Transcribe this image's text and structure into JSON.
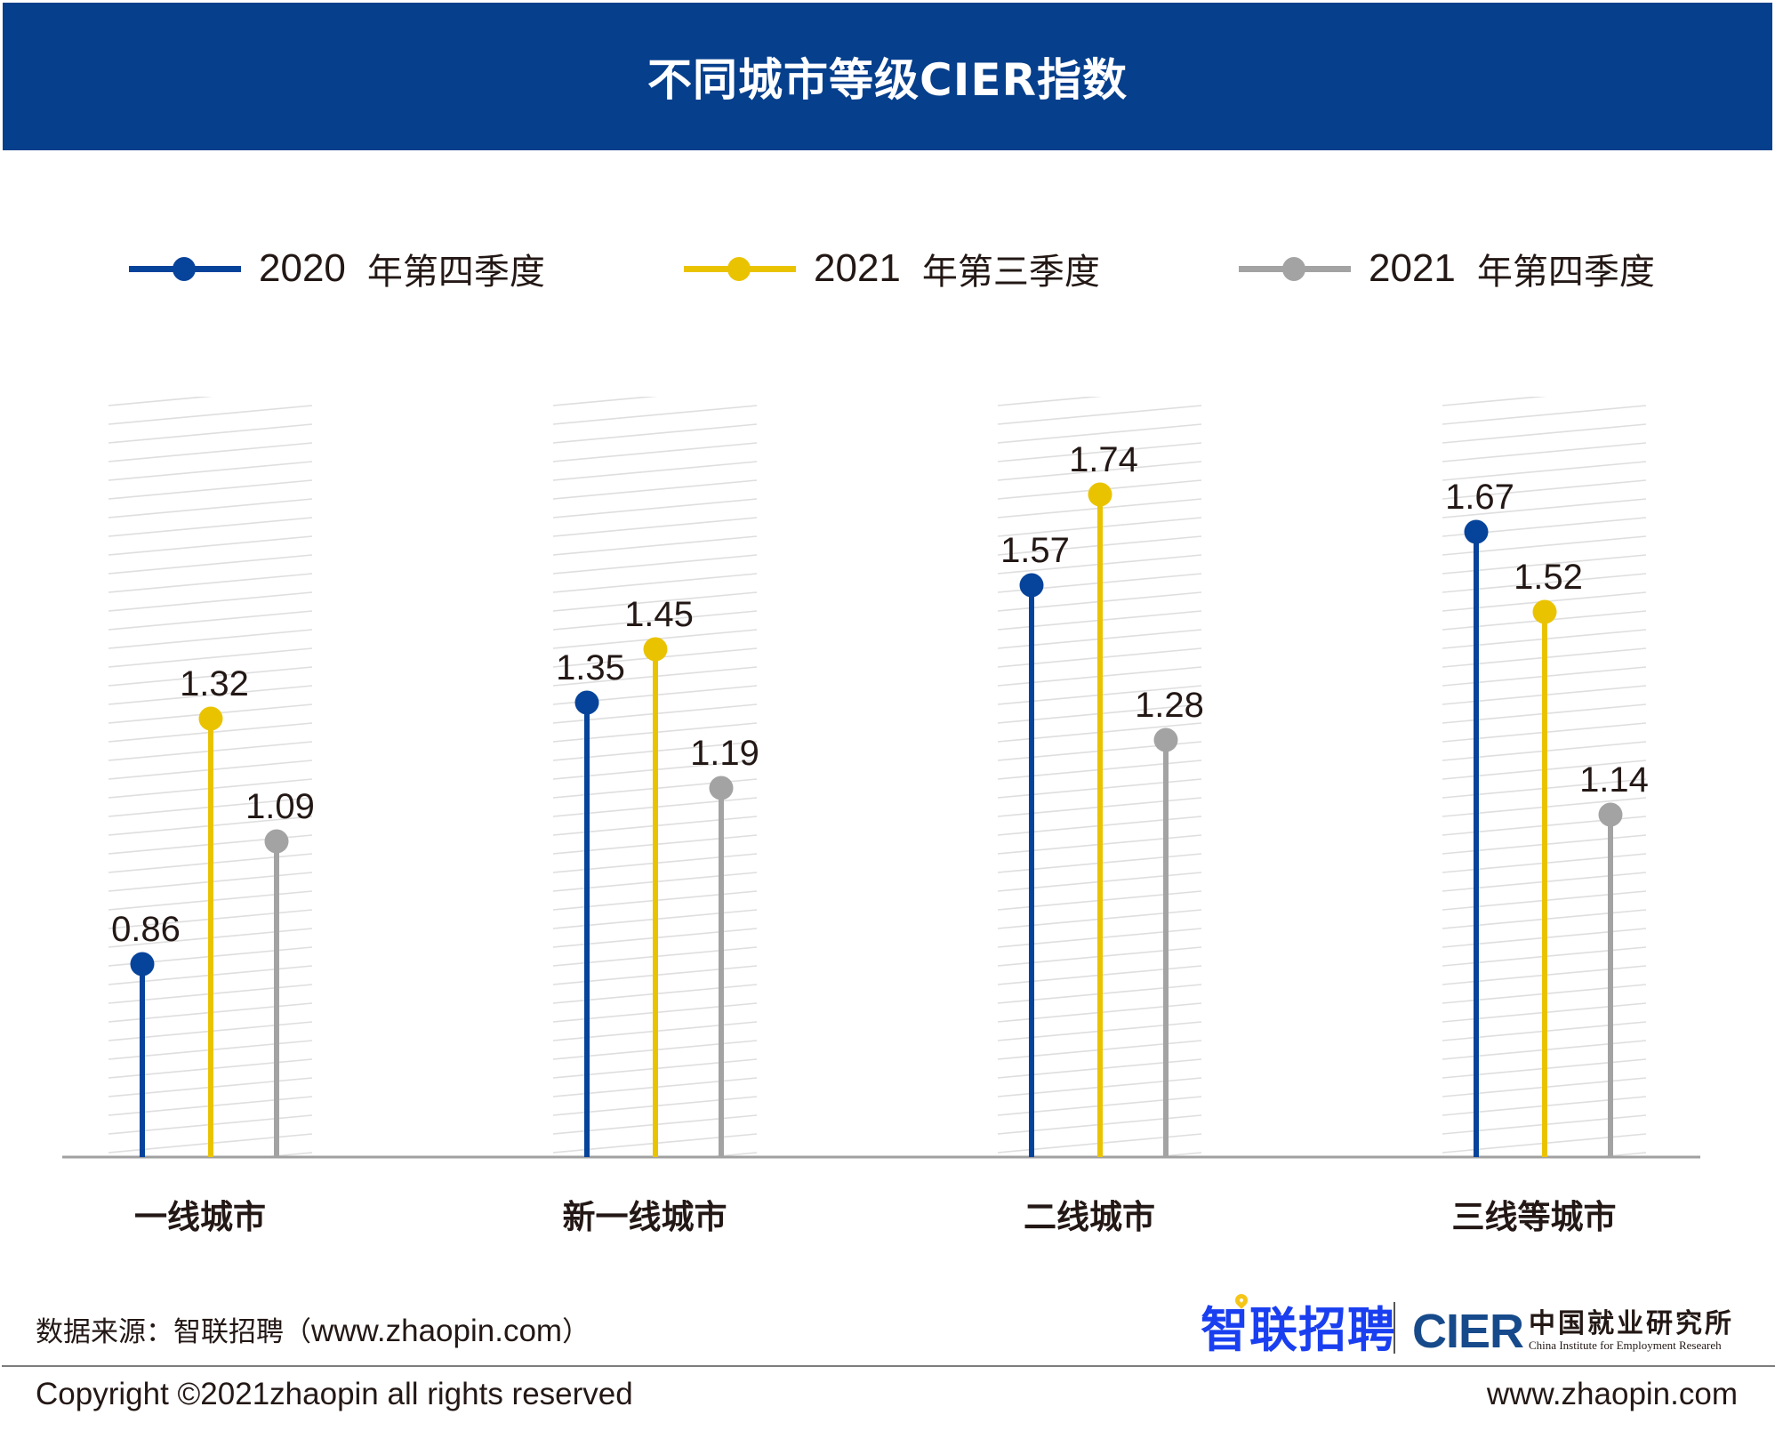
{
  "header": {
    "title": "不同城市等级CIER指数"
  },
  "legend": [
    {
      "year": "2020",
      "quarter": "年第四季度",
      "color": "#06439a"
    },
    {
      "year": "2021",
      "quarter": "年第三季度",
      "color": "#eac300"
    },
    {
      "year": "2021",
      "quarter": "年第四季度",
      "color": "#a3a3a3"
    }
  ],
  "chart_data": {
    "type": "lollipop",
    "title": "不同城市等级CIER指数",
    "xlabel": "",
    "ylabel": "",
    "categories": [
      "一线城市",
      "新一线城市",
      "二线城市",
      "三线等城市"
    ],
    "series": [
      {
        "name": "2020 年第四季度",
        "color": "#06439a",
        "values": [
          0.86,
          1.35,
          1.57,
          1.67
        ]
      },
      {
        "name": "2021 年第三季度",
        "color": "#eac300",
        "values": [
          1.32,
          1.45,
          1.74,
          1.52
        ]
      },
      {
        "name": "2021 年第四季度",
        "color": "#a3a3a3",
        "values": [
          1.09,
          1.19,
          1.28,
          1.14
        ]
      }
    ],
    "ylim": [
      0,
      2
    ],
    "grid": false,
    "legend_position": "top",
    "data_labels": true,
    "axis_color": "#a0a0a0",
    "hatch_color": "#dedede"
  },
  "footer": {
    "source_label": "数据来源：智联招聘（",
    "source_url": "www.zhaopin.com",
    "source_close": "）",
    "zhaopin_logo_first": "智",
    "zhaopin_logo_rest": "联招聘",
    "cier_mark": "CIER",
    "cier_cn": "中国就业研究所",
    "cier_en": "China Institute for Employment Researeh",
    "copyright": "Copyright ©2021zhaopin all rights reserved",
    "site": "www.zhaopin.com",
    "brand_blue": "#1a3ff0",
    "brand_yellow": "#f5c518"
  }
}
